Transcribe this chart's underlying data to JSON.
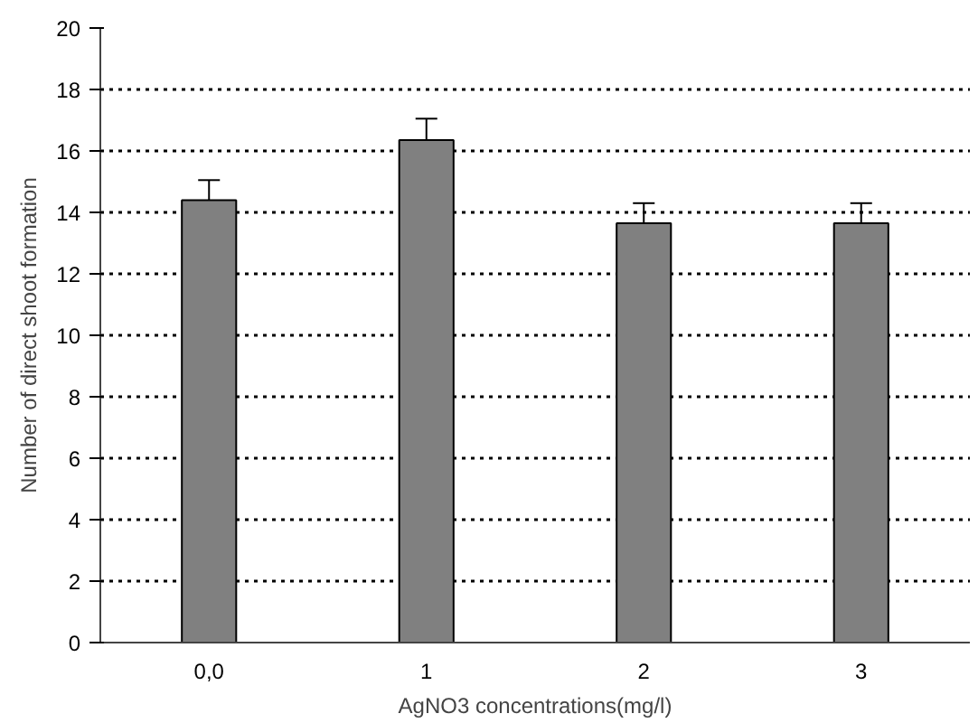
{
  "chart_data": {
    "type": "bar",
    "xlabel": "AgNO3 concentrations(mg/l)",
    "ylabel": "Number of direct shoot formation",
    "categories": [
      "0,0",
      "1",
      "2",
      "3"
    ],
    "values": [
      14.4,
      16.35,
      13.65,
      13.65
    ],
    "errors": [
      [
        14.4,
        15.05
      ],
      [
        16.35,
        17.05
      ],
      [
        13.65,
        14.3
      ],
      [
        13.65,
        14.3
      ]
    ],
    "color": "#808080",
    "ylim": [
      0,
      20
    ],
    "yticks": [
      0,
      2,
      4,
      6,
      8,
      10,
      12,
      14,
      16,
      18,
      20
    ],
    "grid": "y",
    "line_style": "dotted"
  }
}
